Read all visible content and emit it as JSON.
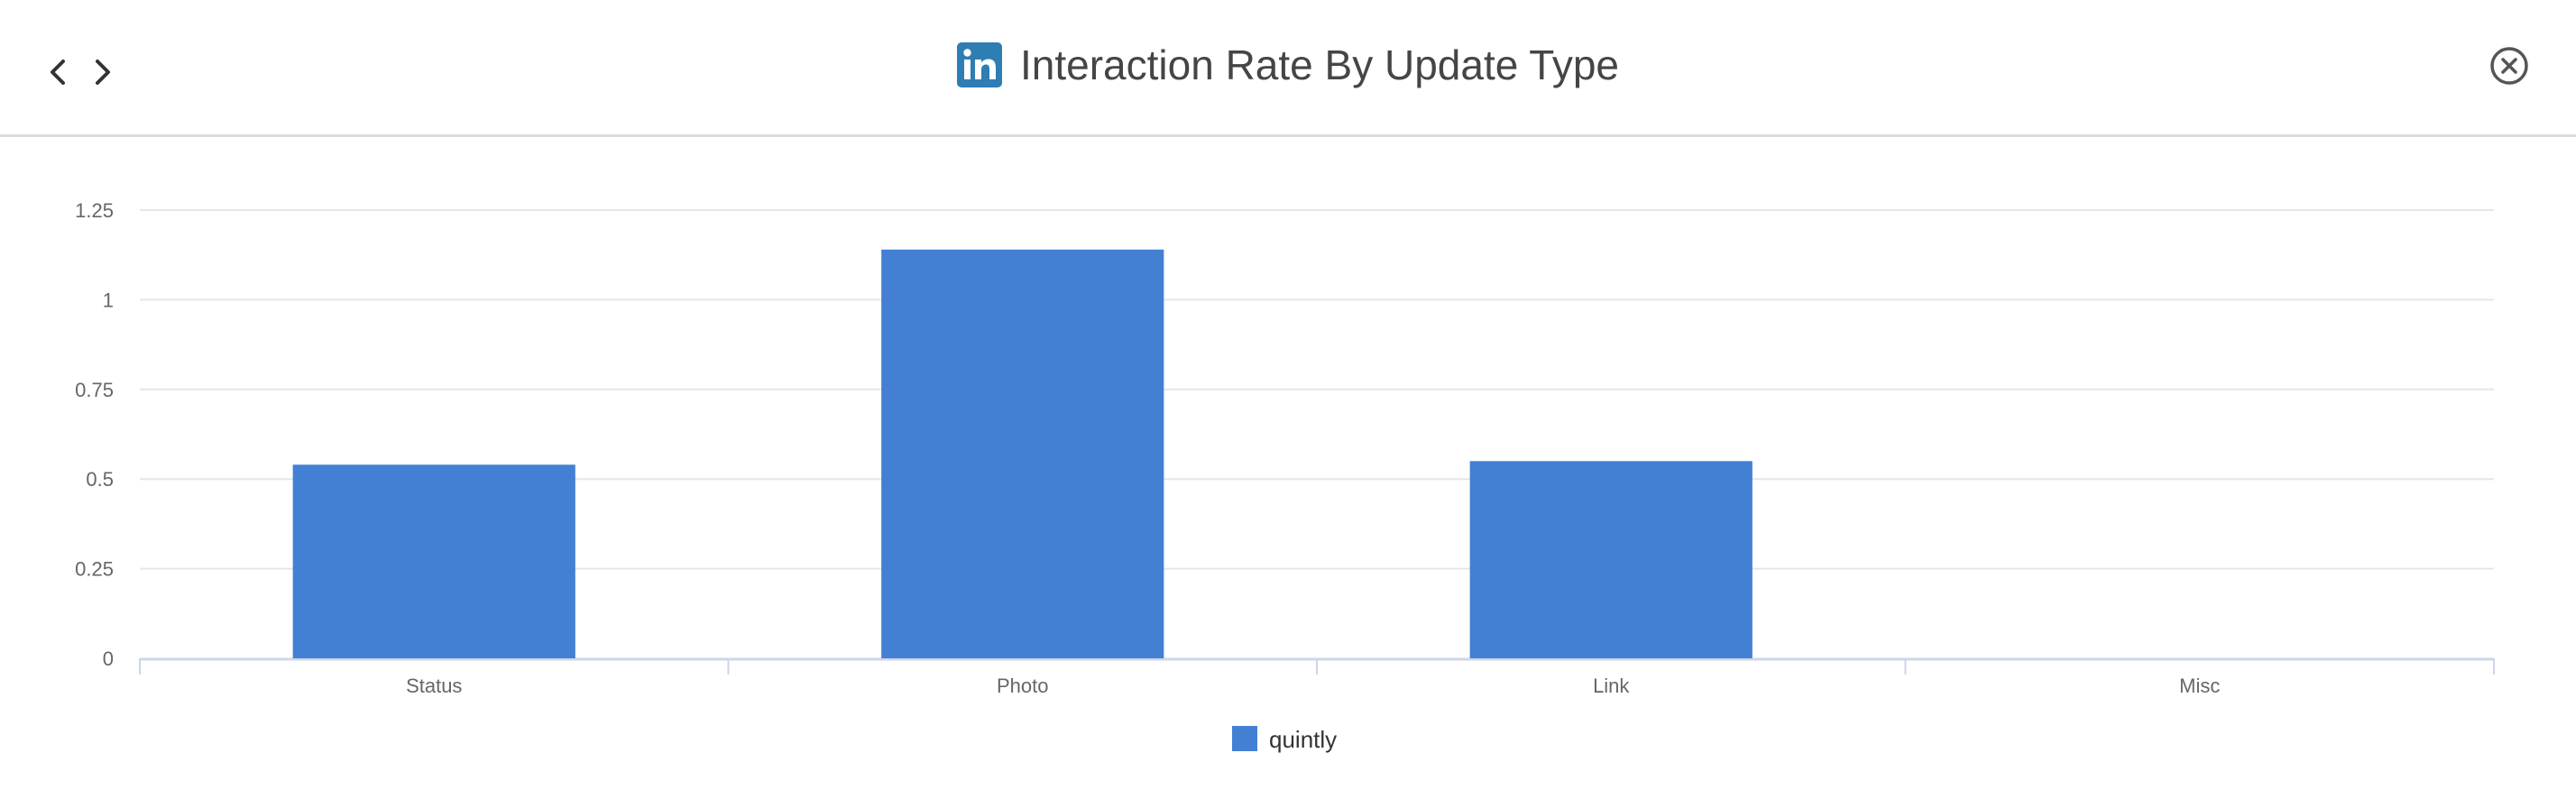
{
  "header": {
    "title": "Interaction Rate By Update Type",
    "prev_icon": "chevron-left-icon",
    "next_icon": "chevron-right-icon",
    "brand_icon": "linkedin-icon",
    "close_icon": "close-circle-icon"
  },
  "colors": {
    "bar": "#4380d3",
    "linkedin": "#2e7db3",
    "grid": "#e6e6e6",
    "axis": "#ccd6eb"
  },
  "chart_data": {
    "type": "bar",
    "title": "Interaction Rate By Update Type",
    "categories": [
      "Status",
      "Photo",
      "Link",
      "Misc"
    ],
    "series": [
      {
        "name": "quintly",
        "values": [
          0.54,
          1.14,
          0.55,
          0
        ]
      }
    ],
    "ylim": [
      0,
      1.25
    ],
    "yticks": [
      0,
      0.25,
      0.5,
      0.75,
      1,
      1.25
    ],
    "ytick_labels": [
      "0",
      "0.25",
      "0.5",
      "0.75",
      "1",
      "1.25"
    ],
    "xlabel": "",
    "ylabel": "",
    "grid": true,
    "legend": "bottom-center"
  }
}
